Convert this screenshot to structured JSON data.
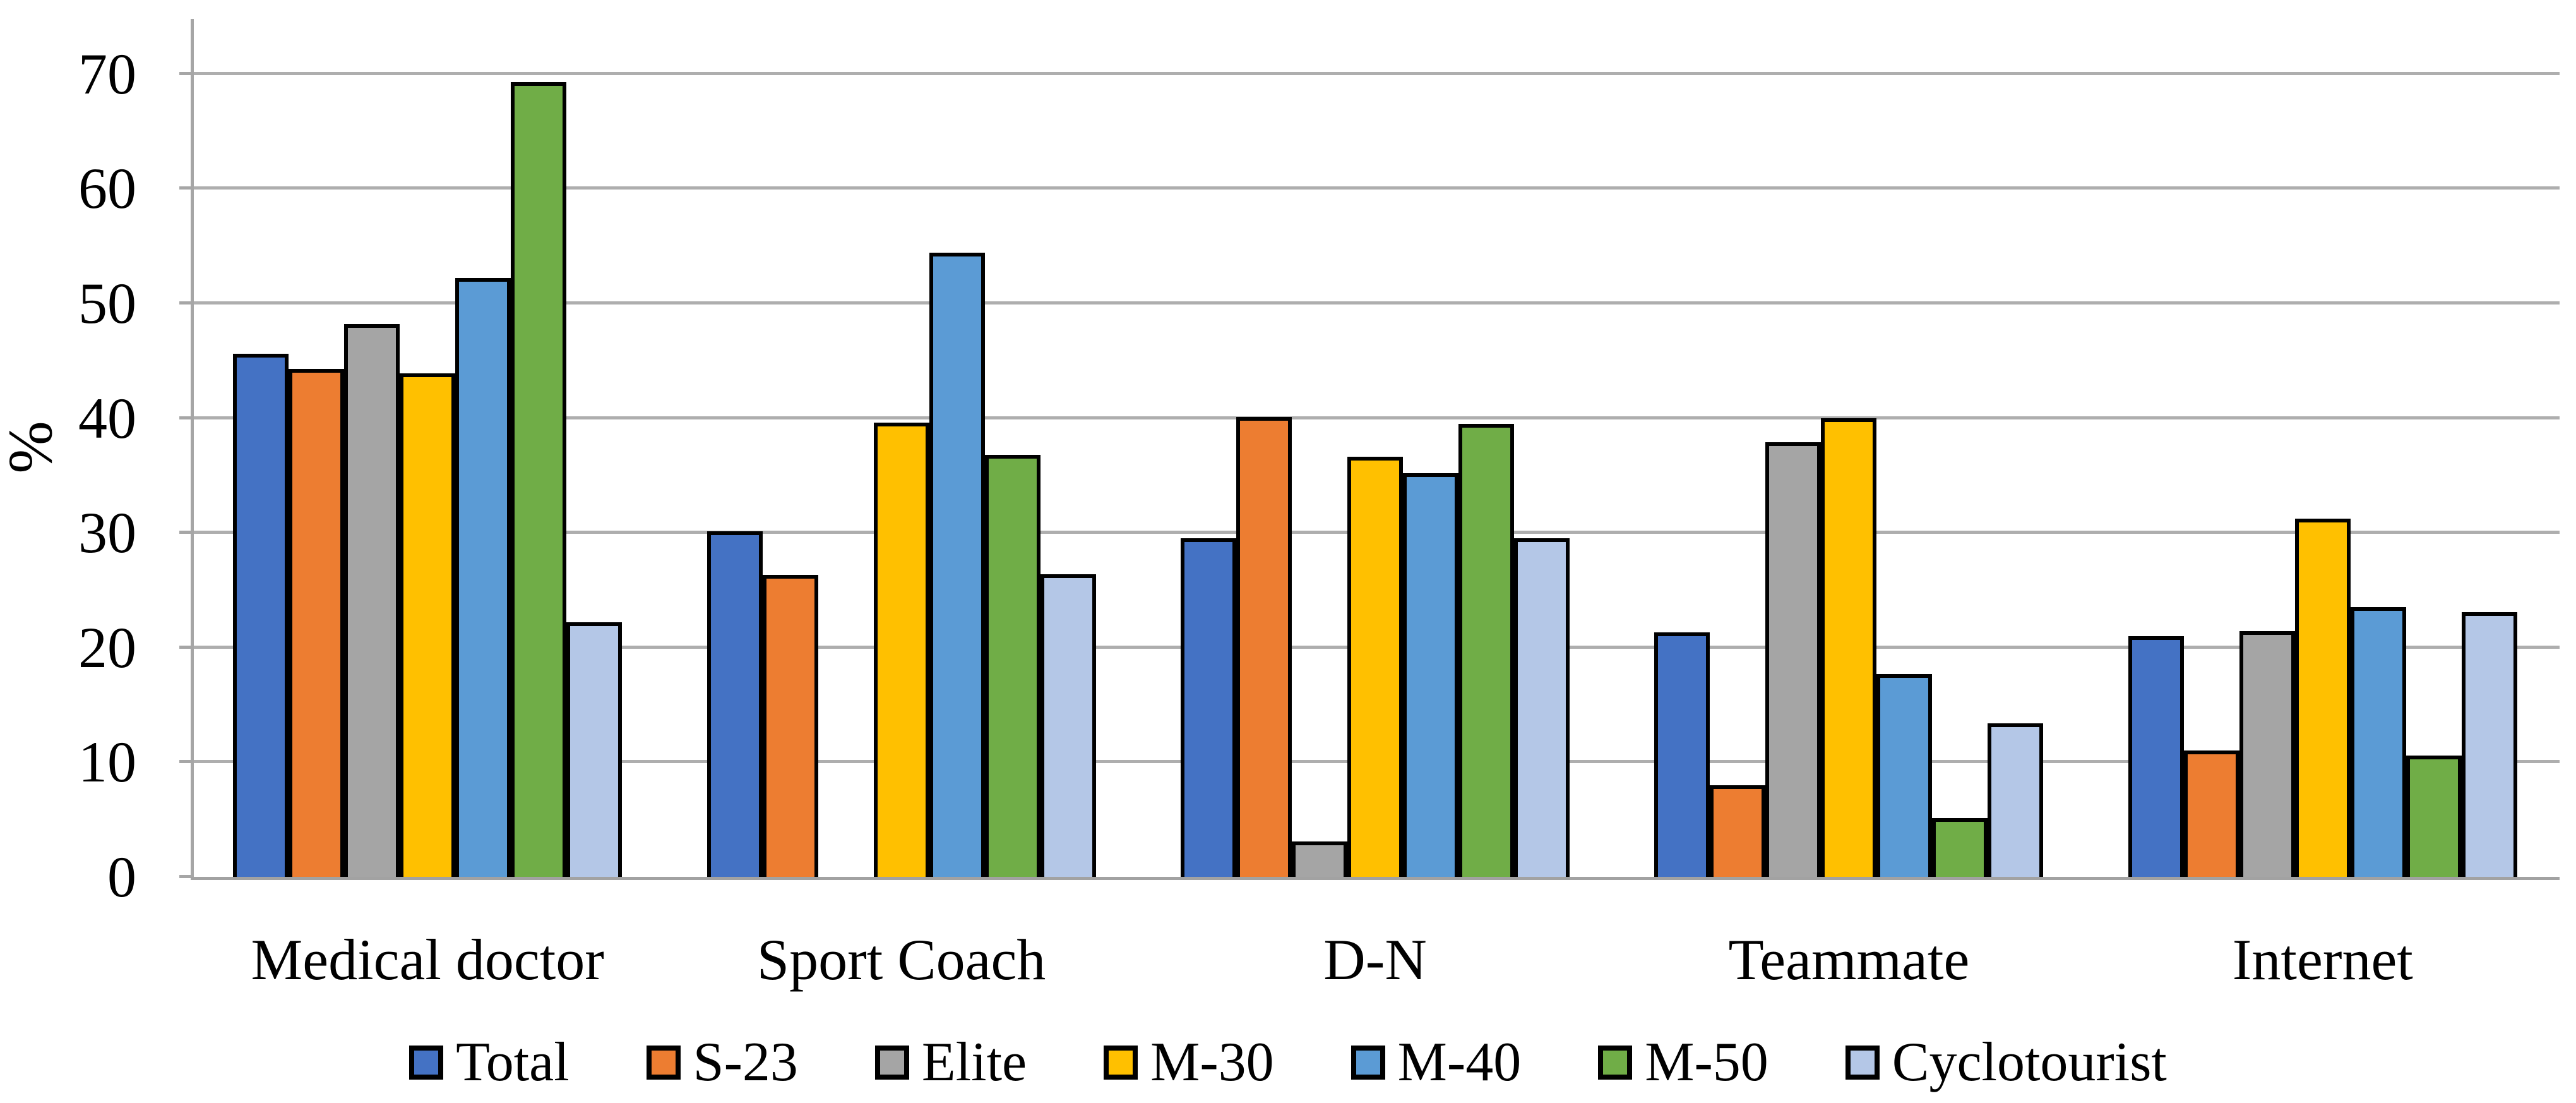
{
  "chart_data": {
    "type": "bar",
    "title": "",
    "xlabel": "",
    "ylabel": "%",
    "ylim": [
      0,
      70
    ],
    "yticks": [
      0,
      10,
      20,
      30,
      40,
      50,
      60,
      70
    ],
    "grid": true,
    "legend_position": "bottom",
    "categories": [
      "Medical doctor",
      "Sport Coach",
      "D-N",
      "Teammate",
      "Internet"
    ],
    "series": [
      {
        "name": "Total",
        "color": "#4472C4",
        "values": [
          45.6,
          30.1,
          29.5,
          21.3,
          21.0
        ]
      },
      {
        "name": "S-23",
        "color": "#ED7D31",
        "values": [
          44.3,
          26.3,
          40.1,
          8.0,
          11.0
        ]
      },
      {
        "name": "Elite",
        "color": "#A5A5A5",
        "values": [
          48.2,
          null,
          3.1,
          37.9,
          21.4
        ]
      },
      {
        "name": "M-30",
        "color": "#FFC000",
        "values": [
          43.9,
          39.6,
          36.6,
          40.0,
          31.2
        ]
      },
      {
        "name": "M-40",
        "color": "#5B9BD5",
        "values": [
          52.2,
          54.4,
          35.2,
          17.7,
          23.5
        ]
      },
      {
        "name": "M-50",
        "color": "#70AD47",
        "values": [
          69.3,
          36.8,
          39.5,
          5.1,
          10.6
        ]
      },
      {
        "name": "Cyclotourist",
        "color": "#B4C7E7",
        "values": [
          22.2,
          26.4,
          29.5,
          13.4,
          23.1
        ]
      }
    ]
  },
  "colors": {
    "background": "#FFFFFF",
    "text": "#000000",
    "gridline": "#AEAEAE",
    "axis_line": "#A6A6A6",
    "bar_border": "#000000"
  }
}
